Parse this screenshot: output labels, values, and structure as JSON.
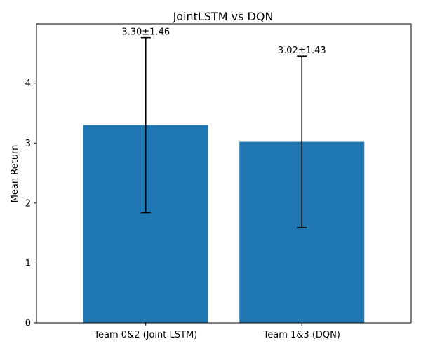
{
  "chart_data": {
    "type": "bar",
    "title": "JointLSTM vs DQN",
    "xlabel": "",
    "ylabel": "Mean Return",
    "categories": [
      "Team 0&2 (Joint LSTM)",
      "Team 1&3 (DQN)"
    ],
    "values": [
      3.3,
      3.02
    ],
    "errors": [
      1.46,
      1.43
    ],
    "data_labels": [
      "3.30±1.46",
      "3.02±1.43"
    ],
    "ylim": [
      0,
      4.99
    ],
    "yticks": [
      0,
      1,
      2,
      3,
      4
    ],
    "bar_color": "#1f77b4",
    "error_color": "#000000",
    "grid": false,
    "legend": "none"
  }
}
